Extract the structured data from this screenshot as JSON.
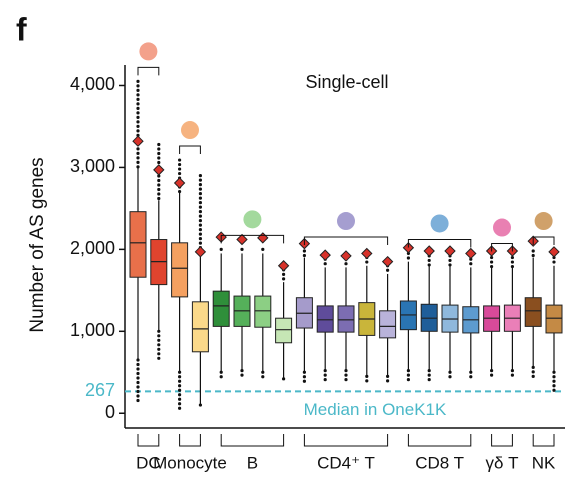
{
  "chart_data": {
    "type": "box",
    "panel": "f",
    "title": "Single-cell",
    "y_label": "Number of AS genes",
    "ylim": [
      -180,
      4250
    ],
    "yticks": [
      0,
      {
        "value": 1000,
        "label": "1,000"
      },
      {
        "value": 2000,
        "label": "2,000"
      },
      {
        "value": 3000,
        "label": "3,000"
      },
      {
        "value": 4000,
        "label": "4,000"
      }
    ],
    "reference": {
      "value": 267,
      "label": "267",
      "text": "Median in OneK1K",
      "color": "#4bb8c8"
    },
    "groups": [
      {
        "name": "DC",
        "icon_color": "#f08a6e",
        "boxes": [
          {
            "color": "#e8704a",
            "q1": 1660,
            "median": 2080,
            "q3": 2460,
            "whisker_low": 650,
            "whisker_high": 3000,
            "marker": 3320,
            "outlier_min": 135,
            "outlier_max": 4050
          },
          {
            "color": "#e0442e",
            "q1": 1570,
            "median": 1850,
            "q3": 2120,
            "whisker_low": 1000,
            "whisker_high": 2600,
            "marker": 2970,
            "outlier_min": 670,
            "outlier_max": 3280
          }
        ]
      },
      {
        "name": "Monocyte",
        "icon_color": "#f4a060",
        "boxes": [
          {
            "color": "#f4a060",
            "q1": 1420,
            "median": 1770,
            "q3": 2080,
            "whisker_low": 500,
            "whisker_high": 2700,
            "marker": 2810,
            "outlier_min": 10,
            "outlier_max": 3090
          },
          {
            "color": "#fbd98a",
            "q1": 750,
            "median": 1030,
            "q3": 1360,
            "whisker_low": 100,
            "whisker_high": 2000,
            "marker": 1970,
            "outlier_min": 100,
            "outlier_max": 2900
          }
        ]
      },
      {
        "name": "B",
        "icon_color": "#8ccf84",
        "boxes": [
          {
            "color": "#2f8f3a",
            "q1": 1060,
            "median": 1310,
            "q3": 1490,
            "whisker_low": 500,
            "whisker_high": 1950,
            "marker": 2150,
            "outlier_min": 440,
            "outlier_max": 2000
          },
          {
            "color": "#55b05a",
            "q1": 1060,
            "median": 1250,
            "q3": 1430,
            "whisker_low": 520,
            "whisker_high": 1950,
            "marker": 2120,
            "outlier_min": 450,
            "outlier_max": 2000
          },
          {
            "color": "#8ccf84",
            "q1": 1050,
            "median": 1250,
            "q3": 1430,
            "whisker_low": 500,
            "whisker_high": 1950,
            "marker": 2140,
            "outlier_min": 440,
            "outlier_max": 2000
          },
          {
            "color": "#c6e6b5",
            "q1": 860,
            "median": 1020,
            "q3": 1160,
            "whisker_low": 420,
            "whisker_high": 1600,
            "marker": 1800,
            "outlier_min": 380,
            "outlier_max": 1750
          }
        ]
      },
      {
        "name": "CD4⁺ T",
        "icon_color": "#8f86c4",
        "boxes": [
          {
            "color": "#a59bcb",
            "q1": 1040,
            "median": 1220,
            "q3": 1410,
            "whisker_low": 500,
            "whisker_high": 1900,
            "marker": 2070,
            "outlier_min": 350,
            "outlier_max": 1980
          },
          {
            "color": "#5f4c9b",
            "q1": 990,
            "median": 1140,
            "q3": 1310,
            "whisker_low": 520,
            "whisker_high": 1780,
            "marker": 1930,
            "outlier_min": 400,
            "outlier_max": 1880
          },
          {
            "color": "#7c6db2",
            "q1": 990,
            "median": 1140,
            "q3": 1310,
            "whisker_low": 520,
            "whisker_high": 1780,
            "marker": 1920,
            "outlier_min": 400,
            "outlier_max": 1880
          },
          {
            "color": "#c9b53a",
            "q1": 950,
            "median": 1150,
            "q3": 1350,
            "whisker_low": 450,
            "whisker_high": 1800,
            "marker": 1950,
            "outlier_min": 380,
            "outlier_max": 1900
          },
          {
            "color": "#b9b3da",
            "q1": 920,
            "median": 1060,
            "q3": 1250,
            "whisker_low": 450,
            "whisker_high": 1700,
            "marker": 1850,
            "outlier_min": 350,
            "outlier_max": 1800
          }
        ]
      },
      {
        "name": "CD8 T",
        "icon_color": "#5d9bcf",
        "boxes": [
          {
            "color": "#2a75b3",
            "q1": 1020,
            "median": 1200,
            "q3": 1370,
            "whisker_low": 520,
            "whisker_high": 1850,
            "marker": 2020,
            "outlier_min": 400,
            "outlier_max": 1950
          },
          {
            "color": "#1f5e99",
            "q1": 1000,
            "median": 1160,
            "q3": 1330,
            "whisker_low": 520,
            "whisker_high": 1800,
            "marker": 1980,
            "outlier_min": 400,
            "outlier_max": 1920
          },
          {
            "color": "#8fb8dc",
            "q1": 990,
            "median": 1150,
            "q3": 1320,
            "whisker_low": 500,
            "whisker_high": 1800,
            "marker": 1980,
            "outlier_min": 400,
            "outlier_max": 1920
          },
          {
            "color": "#5d9bcf",
            "q1": 980,
            "median": 1140,
            "q3": 1300,
            "whisker_low": 500,
            "whisker_high": 1780,
            "marker": 1950,
            "outlier_min": 400,
            "outlier_max": 1880
          }
        ]
      },
      {
        "name": "γδ T",
        "icon_color": "#e4609f",
        "boxes": [
          {
            "color": "#d84a9a",
            "q1": 1000,
            "median": 1160,
            "q3": 1310,
            "whisker_low": 520,
            "whisker_high": 1780,
            "marker": 1980,
            "outlier_min": 420,
            "outlier_max": 1900
          },
          {
            "color": "#ea7fb8",
            "q1": 1000,
            "median": 1160,
            "q3": 1320,
            "whisker_low": 520,
            "whisker_high": 1780,
            "marker": 1980,
            "outlier_min": 420,
            "outlier_max": 1900
          }
        ]
      },
      {
        "name": "NK",
        "icon_color": "#c48a45",
        "boxes": [
          {
            "color": "#8a4f1f",
            "q1": 1060,
            "median": 1250,
            "q3": 1410,
            "whisker_low": 560,
            "whisker_high": 1900,
            "marker": 2100,
            "outlier_min": 450,
            "outlier_max": 1980
          },
          {
            "color": "#c48a45",
            "q1": 980,
            "median": 1160,
            "q3": 1320,
            "whisker_low": 500,
            "whisker_high": 1800,
            "marker": 1970,
            "outlier_min": 250,
            "outlier_max": 1900
          }
        ]
      }
    ]
  }
}
